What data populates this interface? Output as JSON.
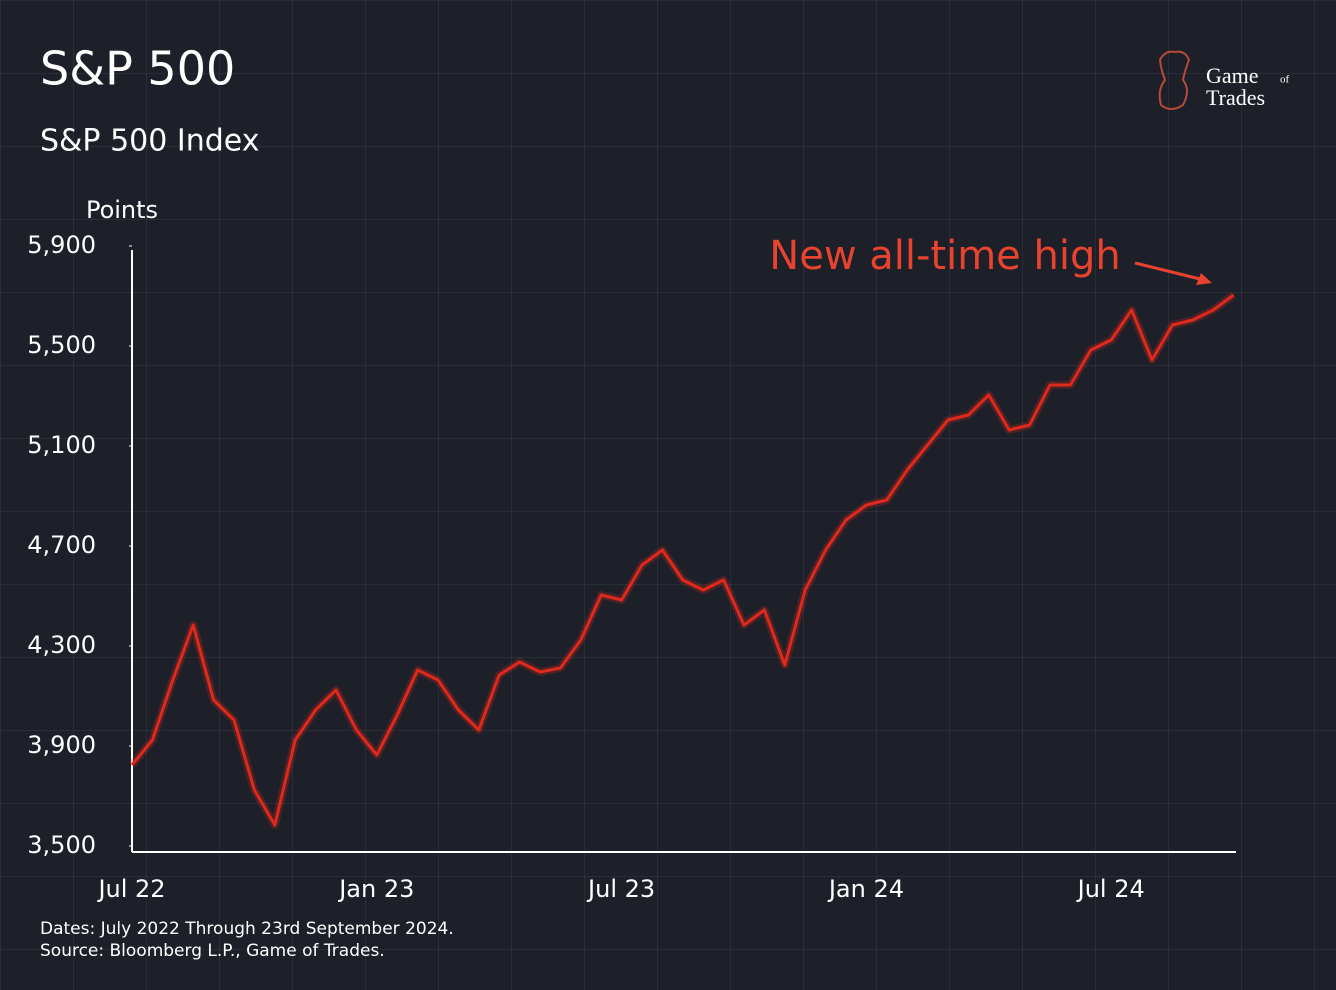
{
  "chart_data": {
    "type": "line",
    "title": "S&P 500",
    "subtitle": "S&P 500 Index",
    "y_label": "Points",
    "annotation": "New all-time high",
    "notes": [
      "Dates: July 2022 Through 23rd September 2024.",
      "Source: Bloomberg L.P., Game of Trades."
    ],
    "logo": [
      "Game",
      "of",
      "Trades"
    ],
    "color": "#e0281c",
    "categories": [
      "Jul 22",
      null,
      null,
      null,
      null,
      null,
      null,
      null,
      null,
      null,
      null,
      null,
      "Jan 23",
      null,
      null,
      null,
      null,
      null,
      null,
      null,
      null,
      null,
      null,
      null,
      "Jul 23",
      null,
      null,
      null,
      null,
      null,
      null,
      null,
      null,
      null,
      null,
      null,
      "Jan 24",
      null,
      null,
      null,
      null,
      null,
      null,
      null,
      null,
      null,
      null,
      null,
      "Jul 24",
      null,
      null,
      null,
      null,
      null,
      null
    ],
    "values": [
      3824,
      3924,
      4164,
      4384,
      4084,
      4004,
      3724,
      3584,
      3924,
      4044,
      4124,
      3964,
      3864,
      4024,
      4204,
      4164,
      4044,
      3964,
      4184,
      4236,
      4196,
      4212,
      4324,
      4504,
      4484,
      4624,
      4684,
      4564,
      4524,
      4564,
      4384,
      4444,
      4224,
      4524,
      4684,
      4804,
      4864,
      4884,
      5004,
      5104,
      5204,
      5224,
      5304,
      5164,
      5184,
      5344,
      5344,
      5484,
      5524,
      5644,
      5444,
      5584,
      5604,
      5644,
      5704
    ],
    "ylim": [
      3500,
      5900
    ],
    "yticks": [
      {
        "value": 3500,
        "label": "3,500"
      },
      {
        "value": 3900,
        "label": "3,900"
      },
      {
        "value": 4300,
        "label": "4,300"
      },
      {
        "value": 4700,
        "label": "4,700"
      },
      {
        "value": 5100,
        "label": "5,100"
      },
      {
        "value": 5500,
        "label": "5,500"
      },
      {
        "value": 5900,
        "label": "5,900"
      }
    ]
  }
}
